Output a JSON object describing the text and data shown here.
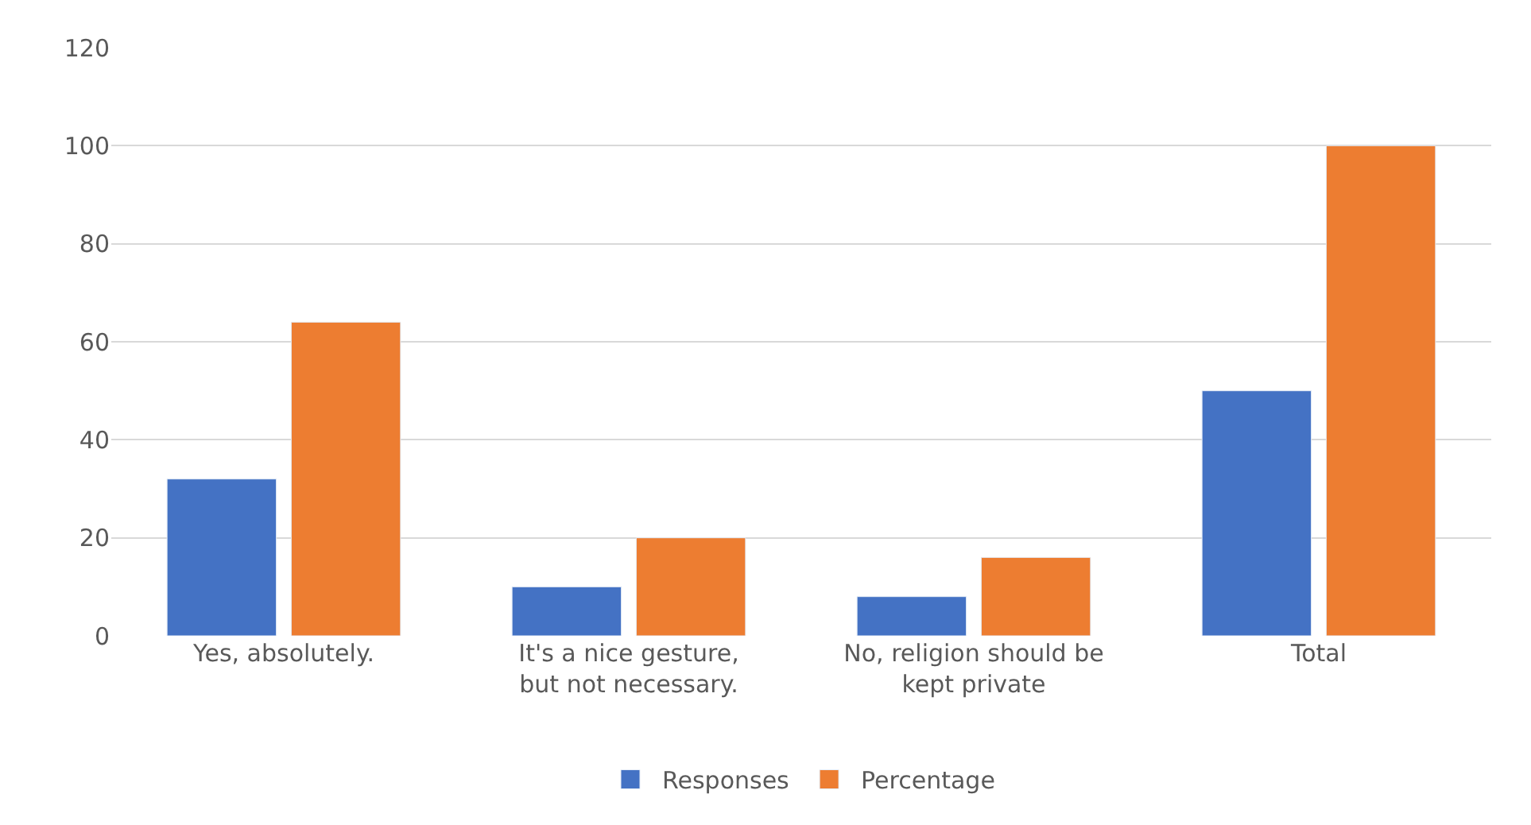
{
  "chart_data": {
    "type": "bar",
    "categories": [
      "Yes, absolutely.",
      "It's a nice gesture, but not necessary.",
      "No, religion should be kept private",
      "Total"
    ],
    "series": [
      {
        "name": "Responses",
        "color": "#4472c4",
        "values": [
          32,
          10,
          8,
          50
        ]
      },
      {
        "name": "Percentage",
        "color": "#ed7d31",
        "values": [
          64,
          20,
          16,
          100
        ]
      }
    ],
    "ylim": [
      0,
      120
    ],
    "yticks": [
      0,
      20,
      40,
      60,
      80,
      100,
      120
    ],
    "grid": "y",
    "legend": "bottom"
  }
}
